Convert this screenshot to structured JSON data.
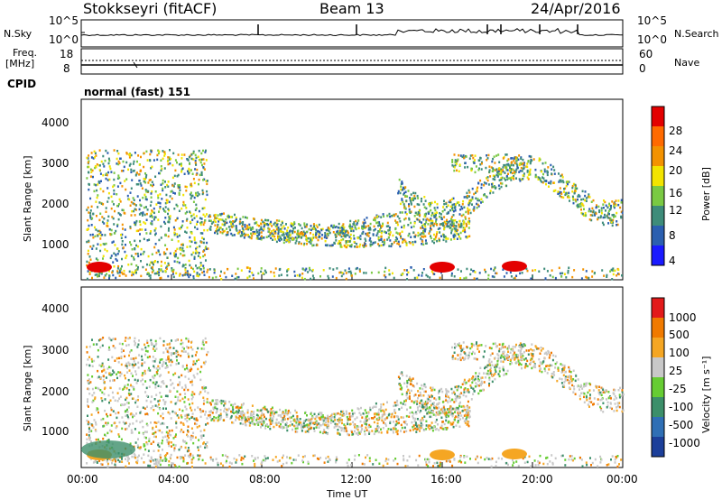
{
  "header": {
    "station": "Stokkseyri (fitACF)",
    "beam": "Beam 13",
    "date": "24/Apr/2016"
  },
  "side_panels": {
    "nsky_label": "N.Sky",
    "nsearch_label": "N.Search",
    "noise_ticks_left": [
      "10^5",
      "10^0"
    ],
    "noise_ticks_right": [
      "10^5",
      "10^0"
    ],
    "freq_label_1": "Freq.",
    "freq_label_2": "[MHz]",
    "freq_ticks": [
      "18",
      "8"
    ],
    "nave_label": "Nave",
    "nave_ticks": [
      "60",
      "0"
    ],
    "cpid_label": "CPID",
    "cpid_value": "normal (fast) 151"
  },
  "chart_data": [
    {
      "type": "heatmap",
      "name": "power",
      "ylabel": "Slant Range [km]",
      "yticks": [
        "1000",
        "2000",
        "3000",
        "4000"
      ],
      "ylim": [
        180,
        4500
      ],
      "colorbar_label": "Power [dB]",
      "colorbar_ticks": [
        "4",
        "8",
        "12",
        "16",
        "20",
        "24",
        "28"
      ],
      "colorbar_colors": [
        "#1a1aff",
        "#2b5fb0",
        "#3e8c7a",
        "#7ac943",
        "#f2e400",
        "#f39200",
        "#ff6a00",
        "#e30000"
      ]
    },
    {
      "type": "heatmap",
      "name": "velocity",
      "ylabel": "Slant Range [km]",
      "yticks": [
        "1000",
        "2000",
        "3000",
        "4000"
      ],
      "ylim": [
        180,
        4500
      ],
      "colorbar_label": "Velocity [m s⁻¹]",
      "colorbar_ticks": [
        "1000",
        "500",
        "100",
        "25",
        "-25",
        "-100",
        "-500",
        "-1000"
      ],
      "colorbar_colors": [
        "#1c3f9a",
        "#2f6fb5",
        "#3c8f6a",
        "#66cc33",
        "#c8c8c8",
        "#f5a623",
        "#f07a00",
        "#e31a1a"
      ]
    }
  ],
  "xaxis": {
    "ticks": [
      "00:00",
      "04:00",
      "08:00",
      "12:00",
      "16:00",
      "20:00",
      "00:00"
    ],
    "label": "Time UT"
  },
  "colors": {
    "grey": "#c8c8c8"
  }
}
